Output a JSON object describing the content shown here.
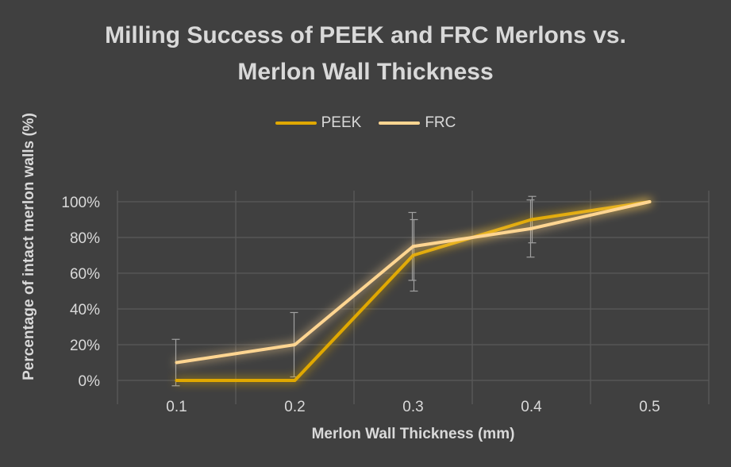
{
  "chart_data": {
    "type": "line",
    "title_lines": [
      "Milling Success of PEEK and FRC Merlons vs.",
      "Merlon Wall Thickness"
    ],
    "xlabel": "Merlon Wall Thickness (mm)",
    "ylabel": "Percentage of intact merlon walls (%)",
    "categories": [
      "0.1",
      "0.2",
      "0.3",
      "0.4",
      "0.5"
    ],
    "ylim": [
      0,
      100
    ],
    "yticks": [
      0,
      20,
      40,
      60,
      80,
      100
    ],
    "ytick_labels": [
      "0%",
      "20%",
      "40%",
      "60%",
      "80%",
      "100%"
    ],
    "grid": true,
    "legend_position": "top",
    "series": [
      {
        "name": "PEEK",
        "color": "#e0a800",
        "values": [
          0,
          0,
          70,
          90,
          100
        ],
        "error": [
          0,
          0,
          20,
          13,
          0
        ]
      },
      {
        "name": "FRC",
        "color": "#ffd591",
        "values": [
          10,
          20,
          75,
          85,
          100
        ],
        "error": [
          13,
          18,
          19,
          16,
          0
        ]
      }
    ]
  }
}
